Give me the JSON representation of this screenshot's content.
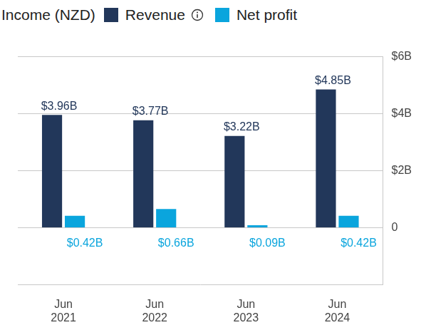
{
  "chart_data": {
    "type": "bar",
    "title": "Income (NZD)",
    "categories": [
      "Jun 2021",
      "Jun 2022",
      "Jun 2023",
      "Jun 2024"
    ],
    "series": [
      {
        "name": "Revenue",
        "color": "#22375a",
        "values": [
          3.96,
          3.77,
          3.22,
          4.85
        ],
        "value_labels": [
          "$3.96B",
          "$3.77B",
          "$3.22B",
          "$4.85B"
        ]
      },
      {
        "name": "Net profit",
        "color": "#0aa5dd",
        "values": [
          0.42,
          0.66,
          0.09,
          0.42
        ],
        "value_labels": [
          "$0.42B",
          "$0.66B",
          "$0.09B",
          "$0.42B"
        ]
      }
    ],
    "ylim": [
      -2,
      6
    ],
    "yticks": [
      0,
      {
        "value": 2,
        "label": "$2B"
      },
      {
        "value": 4,
        "label": "$4B"
      },
      {
        "value": 6,
        "label": "$6B"
      }
    ],
    "grid": true,
    "legend": "top",
    "data_labels": true
  }
}
